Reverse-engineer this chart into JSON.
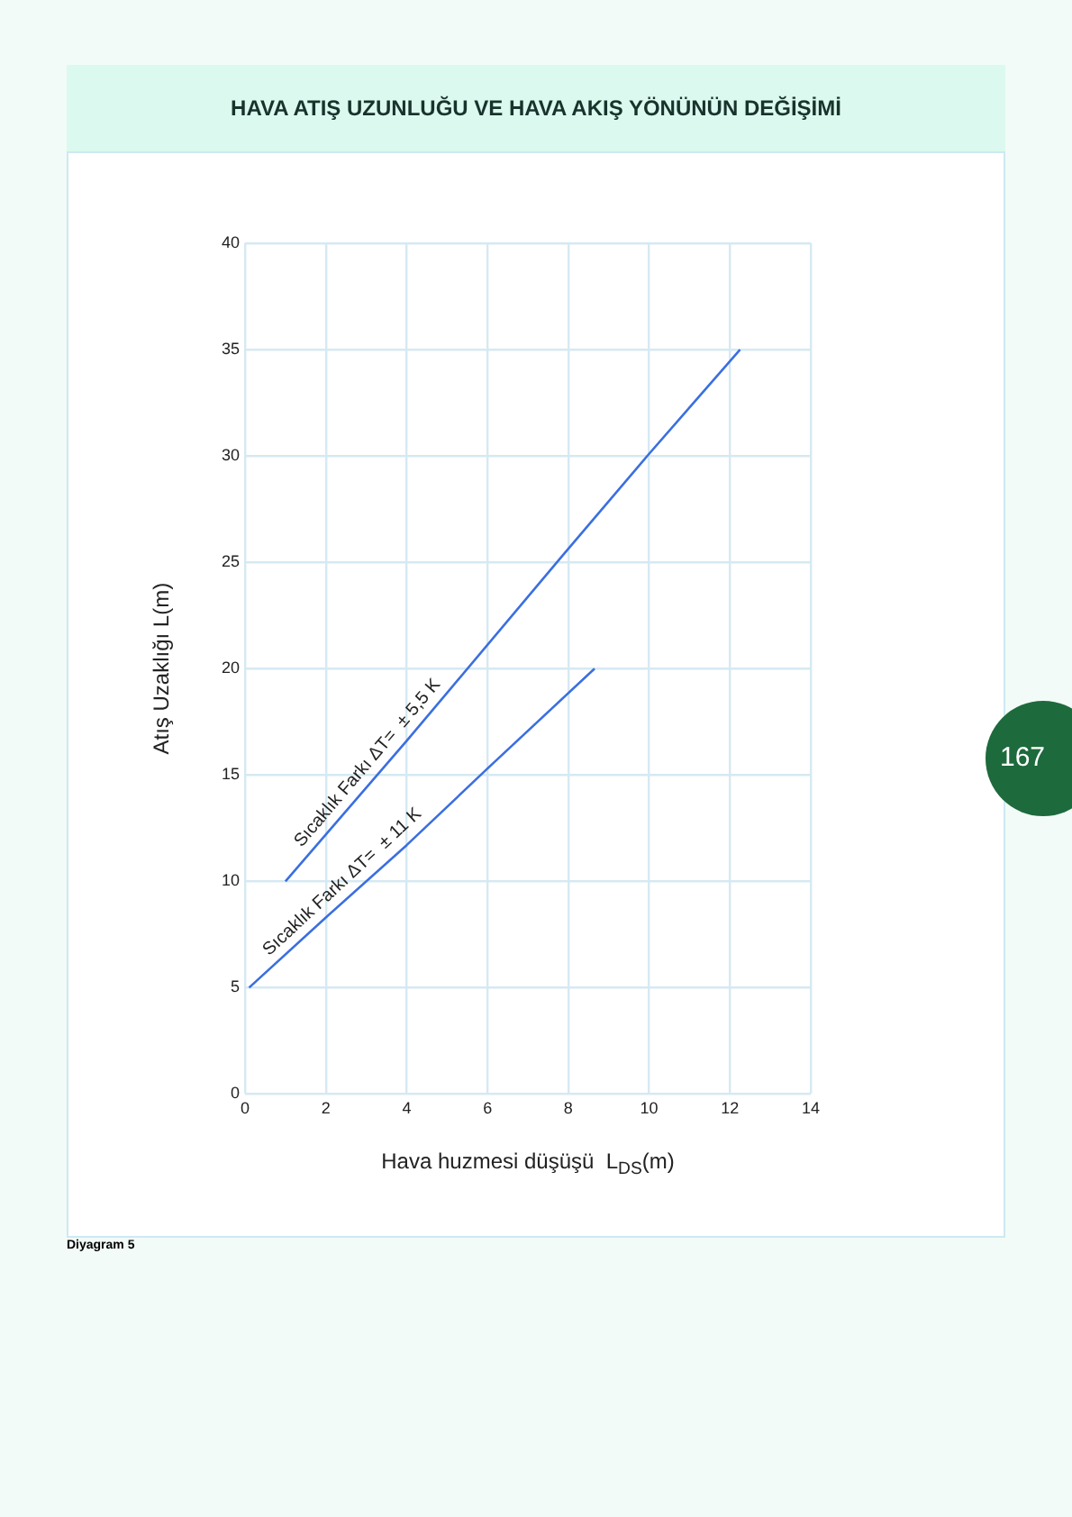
{
  "chart_data": {
    "type": "line",
    "title": "HAVA ATIŞ UZUNLUĞU VE HAVA AKIŞ YÖNÜNÜN DEĞİŞİMİ",
    "xlabel": "Hava huzmesi düşüşü  L$_{DS}$(m)",
    "ylabel": "Atış Uzaklığı L(m)",
    "series": [
      {
        "name": "Sıcaklık Farkı ΔT=  ± 5,5 K",
        "color": "#3b6fe0",
        "x": [
          1,
          4,
          7.85,
          10,
          12.25
        ],
        "values": [
          10,
          16.6,
          25.3,
          30.1,
          35
        ]
      },
      {
        "name": "Sıcaklık Farkı ΔT=  ± 11 K",
        "color": "#3b6fe0",
        "x": [
          0.1,
          2,
          4,
          6,
          8.65
        ],
        "values": [
          5,
          8.3,
          11.7,
          15.3,
          20
        ]
      }
    ],
    "xlim": [
      0,
      14
    ],
    "xticks": [
      0,
      2,
      4,
      6,
      8,
      10,
      12,
      14
    ],
    "ylim": [
      0,
      40
    ],
    "yticks": [
      0,
      5,
      10,
      15,
      20,
      25,
      30,
      35,
      40
    ],
    "grid": true,
    "legend": false,
    "marker": "none",
    "line_style": "solid",
    "annotations": [
      "Diyagram 5",
      "167"
    ]
  }
}
